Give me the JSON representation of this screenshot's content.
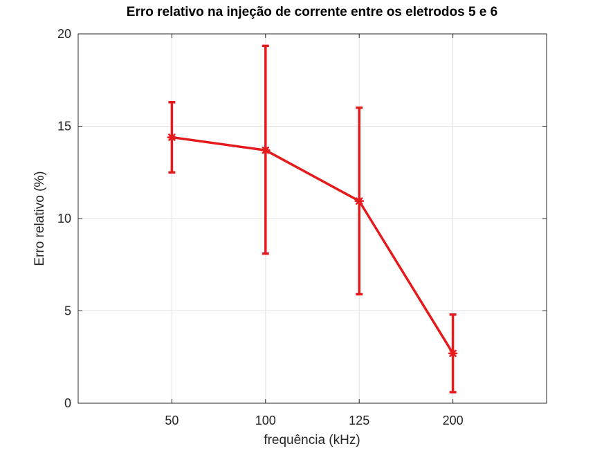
{
  "chart_data": {
    "type": "line",
    "title": "Erro relativo na injeção de corrente entre os eletrodos 5 e 6",
    "xlabel": "frequência (kHz)",
    "ylabel": "Erro relativo (%)",
    "categories": [
      "50",
      "100",
      "125",
      "200"
    ],
    "ylim": [
      0,
      20
    ],
    "yticks": [
      "0",
      "5",
      "10",
      "15",
      "20"
    ],
    "grid": true,
    "legend": "none",
    "series": [
      {
        "values": [
          14.4,
          13.7,
          10.95,
          2.7
        ],
        "error_low": [
          12.5,
          8.1,
          5.9,
          0.6
        ],
        "error_high": [
          16.3,
          19.35,
          16.0,
          4.8
        ],
        "color": "#e41a1c",
        "marker": "asterisk"
      }
    ]
  }
}
